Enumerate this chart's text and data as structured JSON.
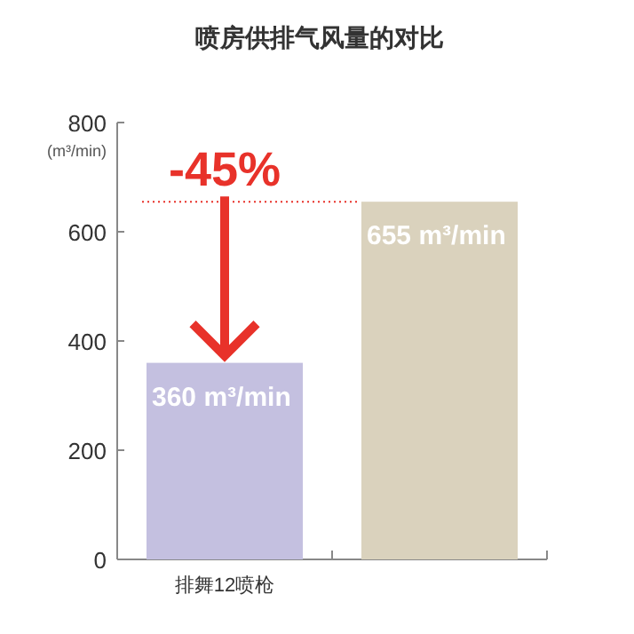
{
  "chart_data": {
    "type": "bar",
    "title": "喷房供排气风量的对比",
    "ylabel": "(m³/min)",
    "categories": [
      "排舞12喷枪",
      null
    ],
    "values": [
      360,
      655
    ],
    "colors": [
      "#c4c0e0",
      "#dad2bd"
    ],
    "value_labels": [
      "360 m³/min",
      "655 m³/min"
    ],
    "ylim": [
      0,
      800
    ],
    "yticks": [
      0,
      200,
      400,
      600,
      800
    ],
    "grid": false,
    "ref_lines": [
      {
        "axis": "y",
        "value": 655,
        "color": "#e8322a",
        "line_style": "dotted"
      }
    ],
    "annotations": [
      "-45%"
    ]
  }
}
